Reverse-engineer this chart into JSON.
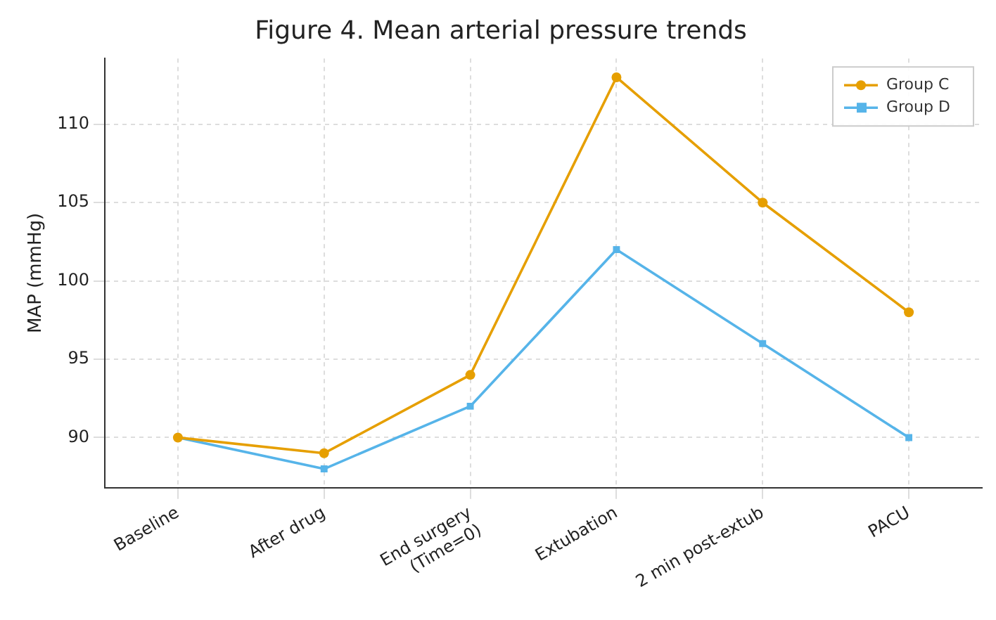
{
  "chart_data": {
    "type": "line",
    "title": "Figure 4. Mean arterial pressure trends",
    "ylabel": "MAP (mmHg)",
    "categories": [
      "Baseline",
      "After drug",
      "End surgery\n(Time=0)",
      "Extubation",
      "2 min post-extub",
      "PACU"
    ],
    "series": [
      {
        "name": "Group C",
        "color": "#e69f00",
        "marker": "circle",
        "values": [
          90,
          89,
          94,
          113,
          105,
          98
        ]
      },
      {
        "name": "Group D",
        "color": "#56b4e9",
        "marker": "square",
        "values": [
          90,
          88,
          92,
          102,
          96,
          90
        ]
      }
    ],
    "ylim": [
      86.8,
      114.2
    ],
    "yticks": [
      90,
      95,
      100,
      105,
      110
    ],
    "grid": true,
    "legend": "top right",
    "line_style": "solid"
  }
}
